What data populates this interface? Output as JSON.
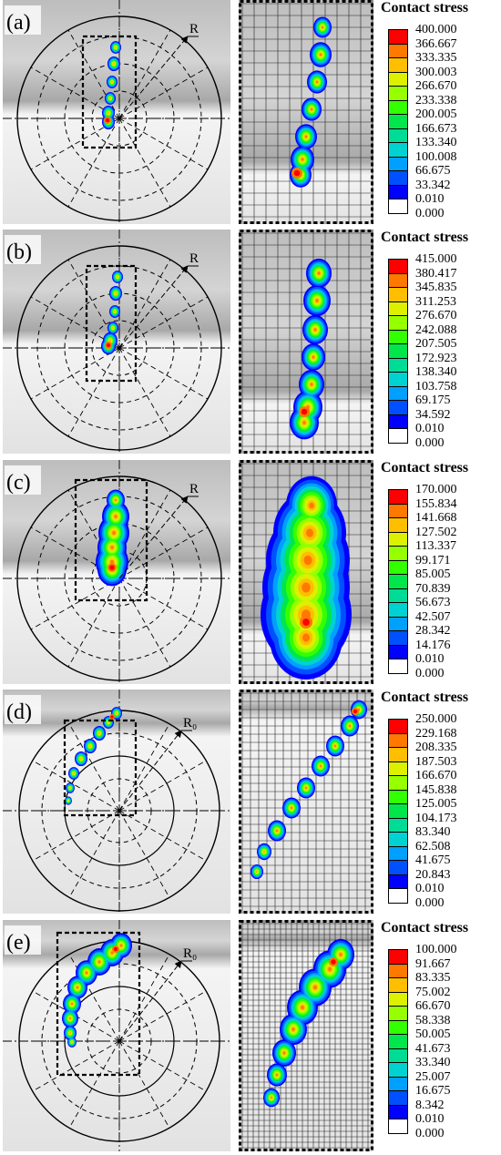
{
  "legend_title": "Contact stress",
  "colors": [
    "#ffffff",
    "#0000ff",
    "#0050ff",
    "#00a0ff",
    "#00d2d2",
    "#00dc96",
    "#00e64b",
    "#32ff00",
    "#96ff00",
    "#dcf000",
    "#ffbe00",
    "#ff7800",
    "#ff0000"
  ],
  "panels": [
    {
      "label": "(a)",
      "radius_label": "R",
      "top": 0,
      "height": 250,
      "levels": [
        "400.000",
        "366.667",
        "333.335",
        "300.003",
        "266.670",
        "233.338",
        "200.005",
        "166.673",
        "133.340",
        "100.008",
        "66.675",
        "33.342",
        "0.010",
        "0.000"
      ]
    },
    {
      "label": "(b)",
      "radius_label": "R",
      "top": 252,
      "height": 250,
      "levels": [
        "415.000",
        "380.417",
        "345.835",
        "311.253",
        "276.670",
        "242.088",
        "207.505",
        "172.923",
        "138.340",
        "103.758",
        "69.175",
        "34.592",
        "0.010",
        "0.000"
      ]
    },
    {
      "label": "(c)",
      "radius_label": "R",
      "top": 505,
      "height": 250,
      "levels": [
        "170.000",
        "155.834",
        "141.668",
        "127.502",
        "113.337",
        "99.171",
        "85.005",
        "70.839",
        "56.673",
        "42.507",
        "28.342",
        "14.176",
        "0.010",
        "0.000"
      ]
    },
    {
      "label": "(d)",
      "radius_label": "R₀",
      "top": 757,
      "height": 250,
      "levels": [
        "250.000",
        "229.168",
        "208.335",
        "187.503",
        "166.670",
        "145.838",
        "125.005",
        "104.173",
        "83.340",
        "62.508",
        "41.675",
        "20.843",
        "0.010",
        "0.000"
      ]
    },
    {
      "label": "(e)",
      "radius_label": "R₀",
      "top": 1010,
      "height": 258,
      "levels": [
        "100.000",
        "91.667",
        "83.335",
        "75.002",
        "66.670",
        "58.338",
        "50.005",
        "41.673",
        "33.340",
        "25.007",
        "16.675",
        "8.342",
        "0.010",
        "0.000"
      ]
    }
  ]
}
